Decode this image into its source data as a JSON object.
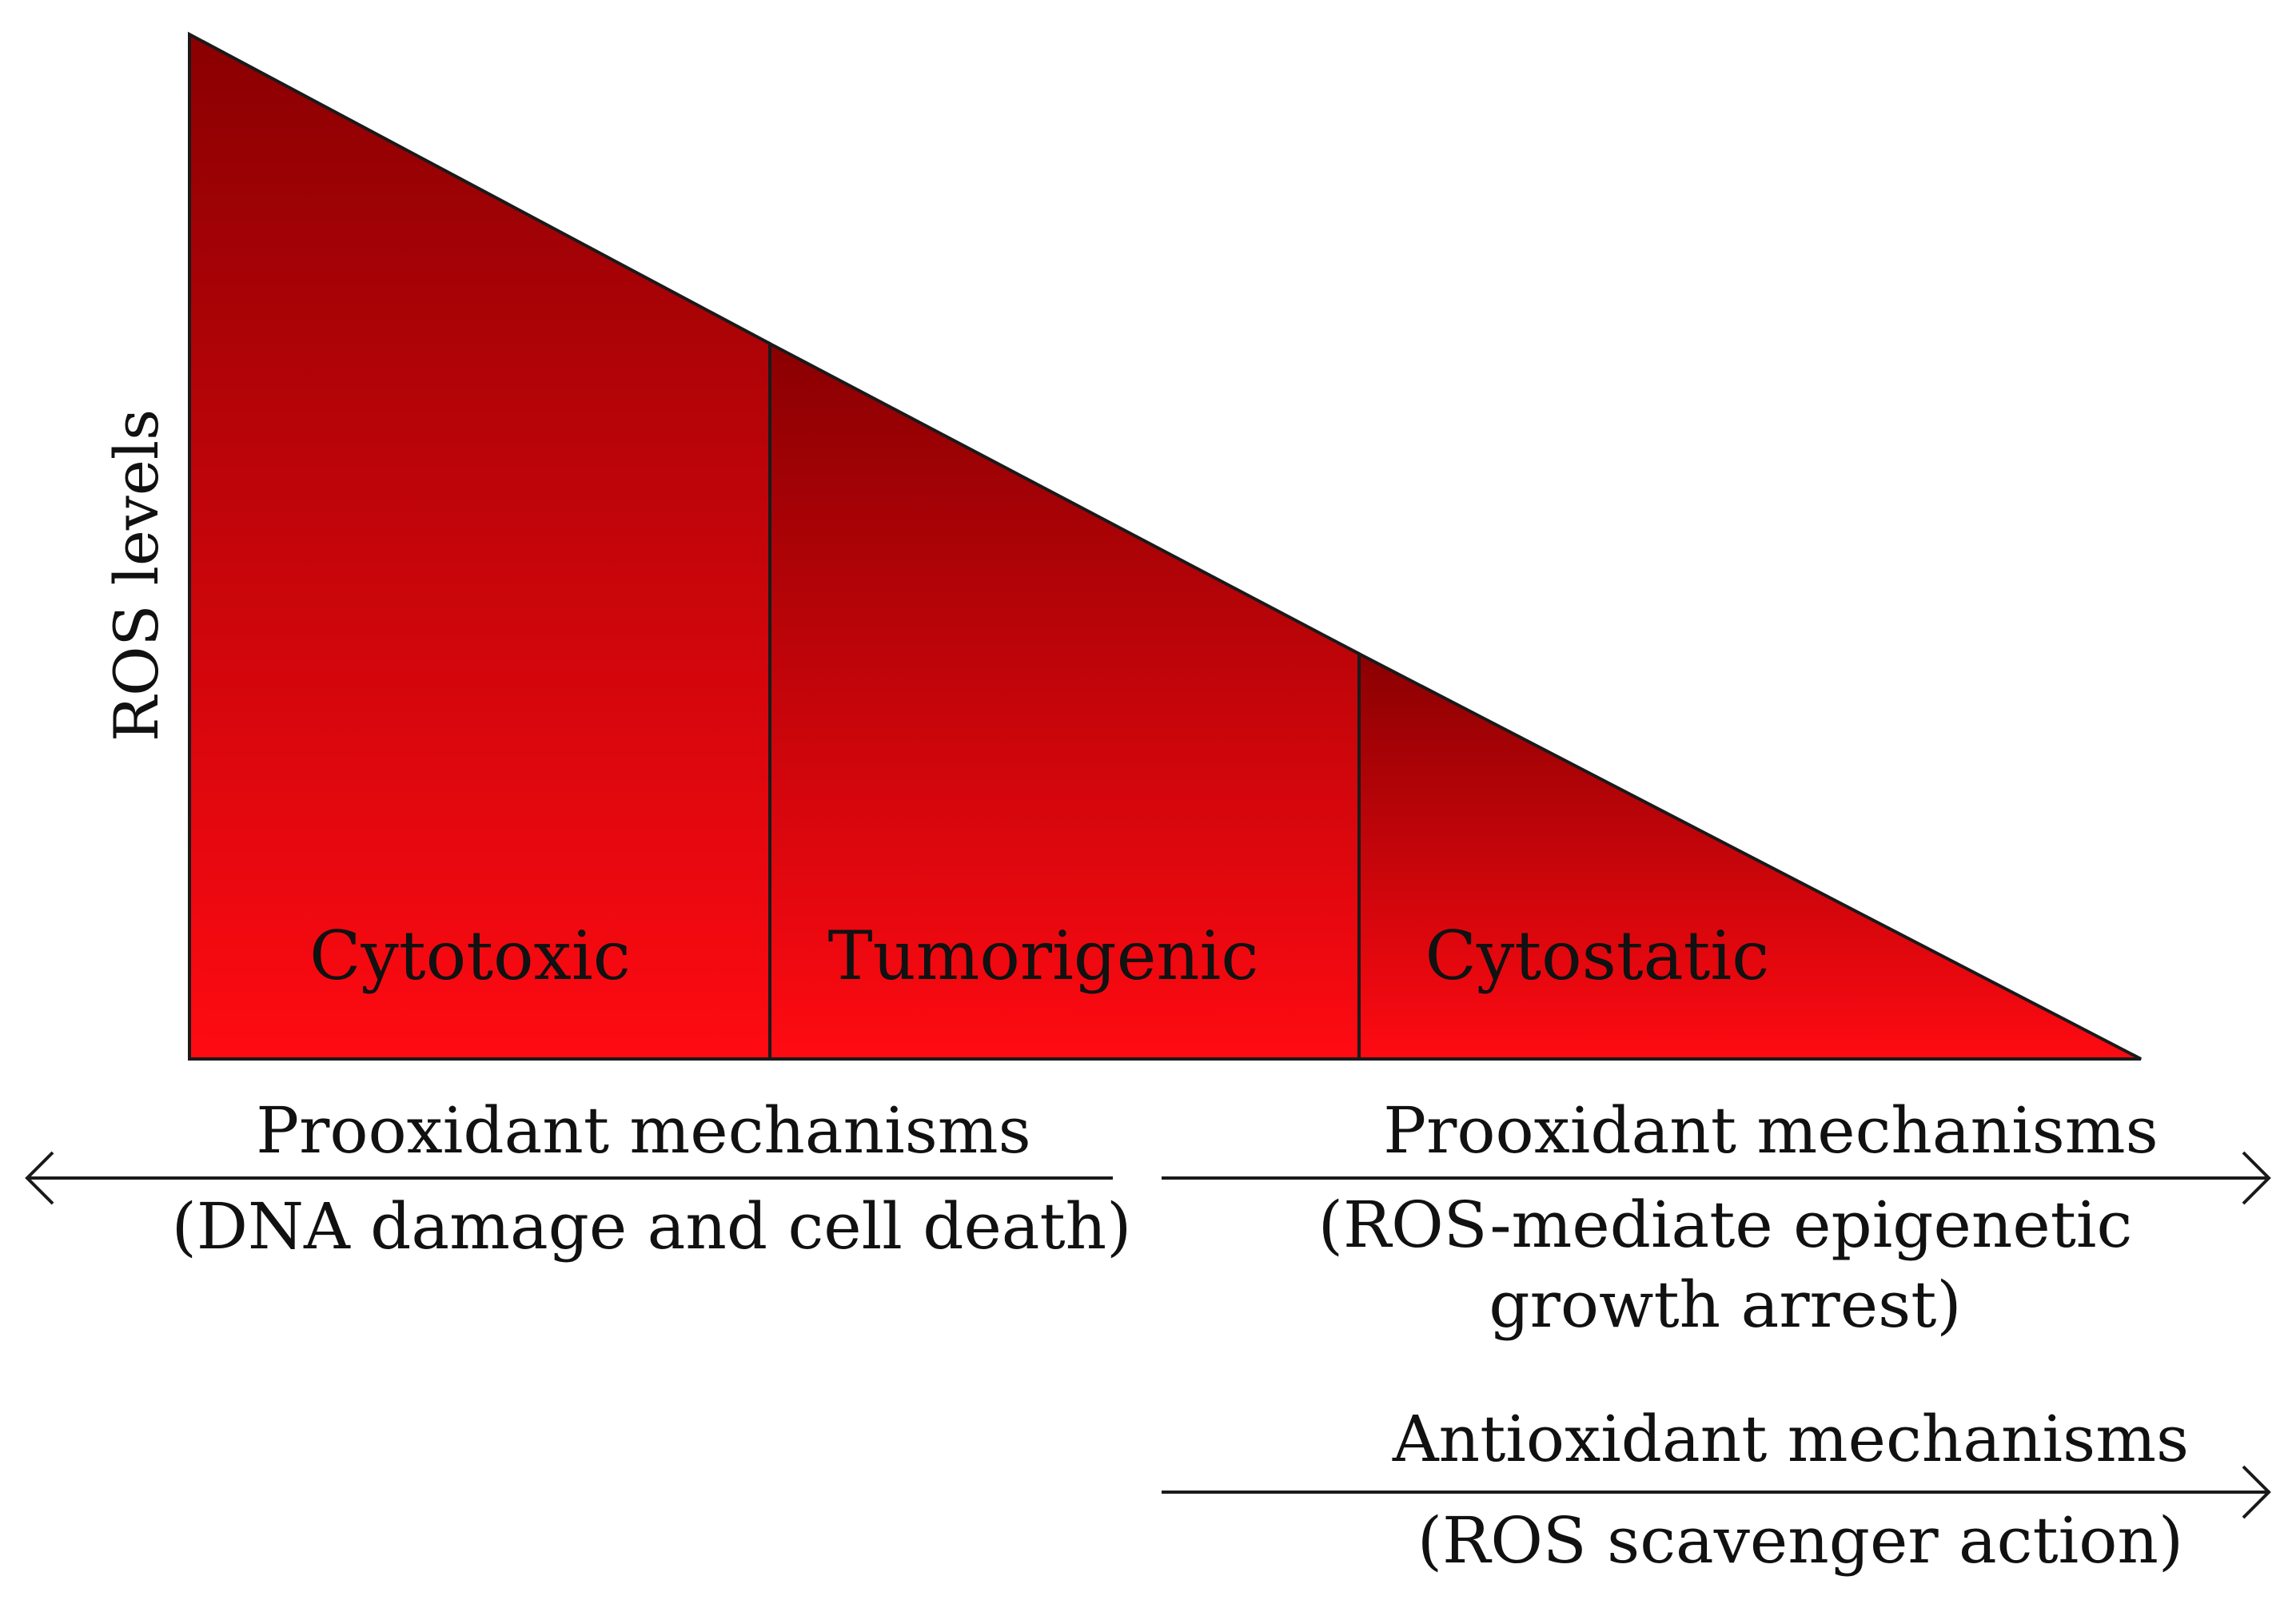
{
  "y_axis_label": "ROS levels",
  "zones": [
    {
      "label": "Cytotoxic"
    },
    {
      "label": "Tumorigenic"
    },
    {
      "label": "Cytostatic"
    }
  ],
  "mechanisms": {
    "left": {
      "title": "Prooxidant mechanisms",
      "detail": "(DNA damage and cell death)"
    },
    "right_prooxidant": {
      "title": "Prooxidant mechanisms",
      "detail_line1": "(ROS-mediate epigenetic",
      "detail_line2": "growth arrest)"
    },
    "right_antioxidant": {
      "title": "Antioxidant mechanisms",
      "detail": "(ROS scavenger action)"
    }
  },
  "colors": {
    "fill_top": "#8a0002",
    "fill_bottom": "#ff0a12",
    "line": "#1a1a1a"
  }
}
